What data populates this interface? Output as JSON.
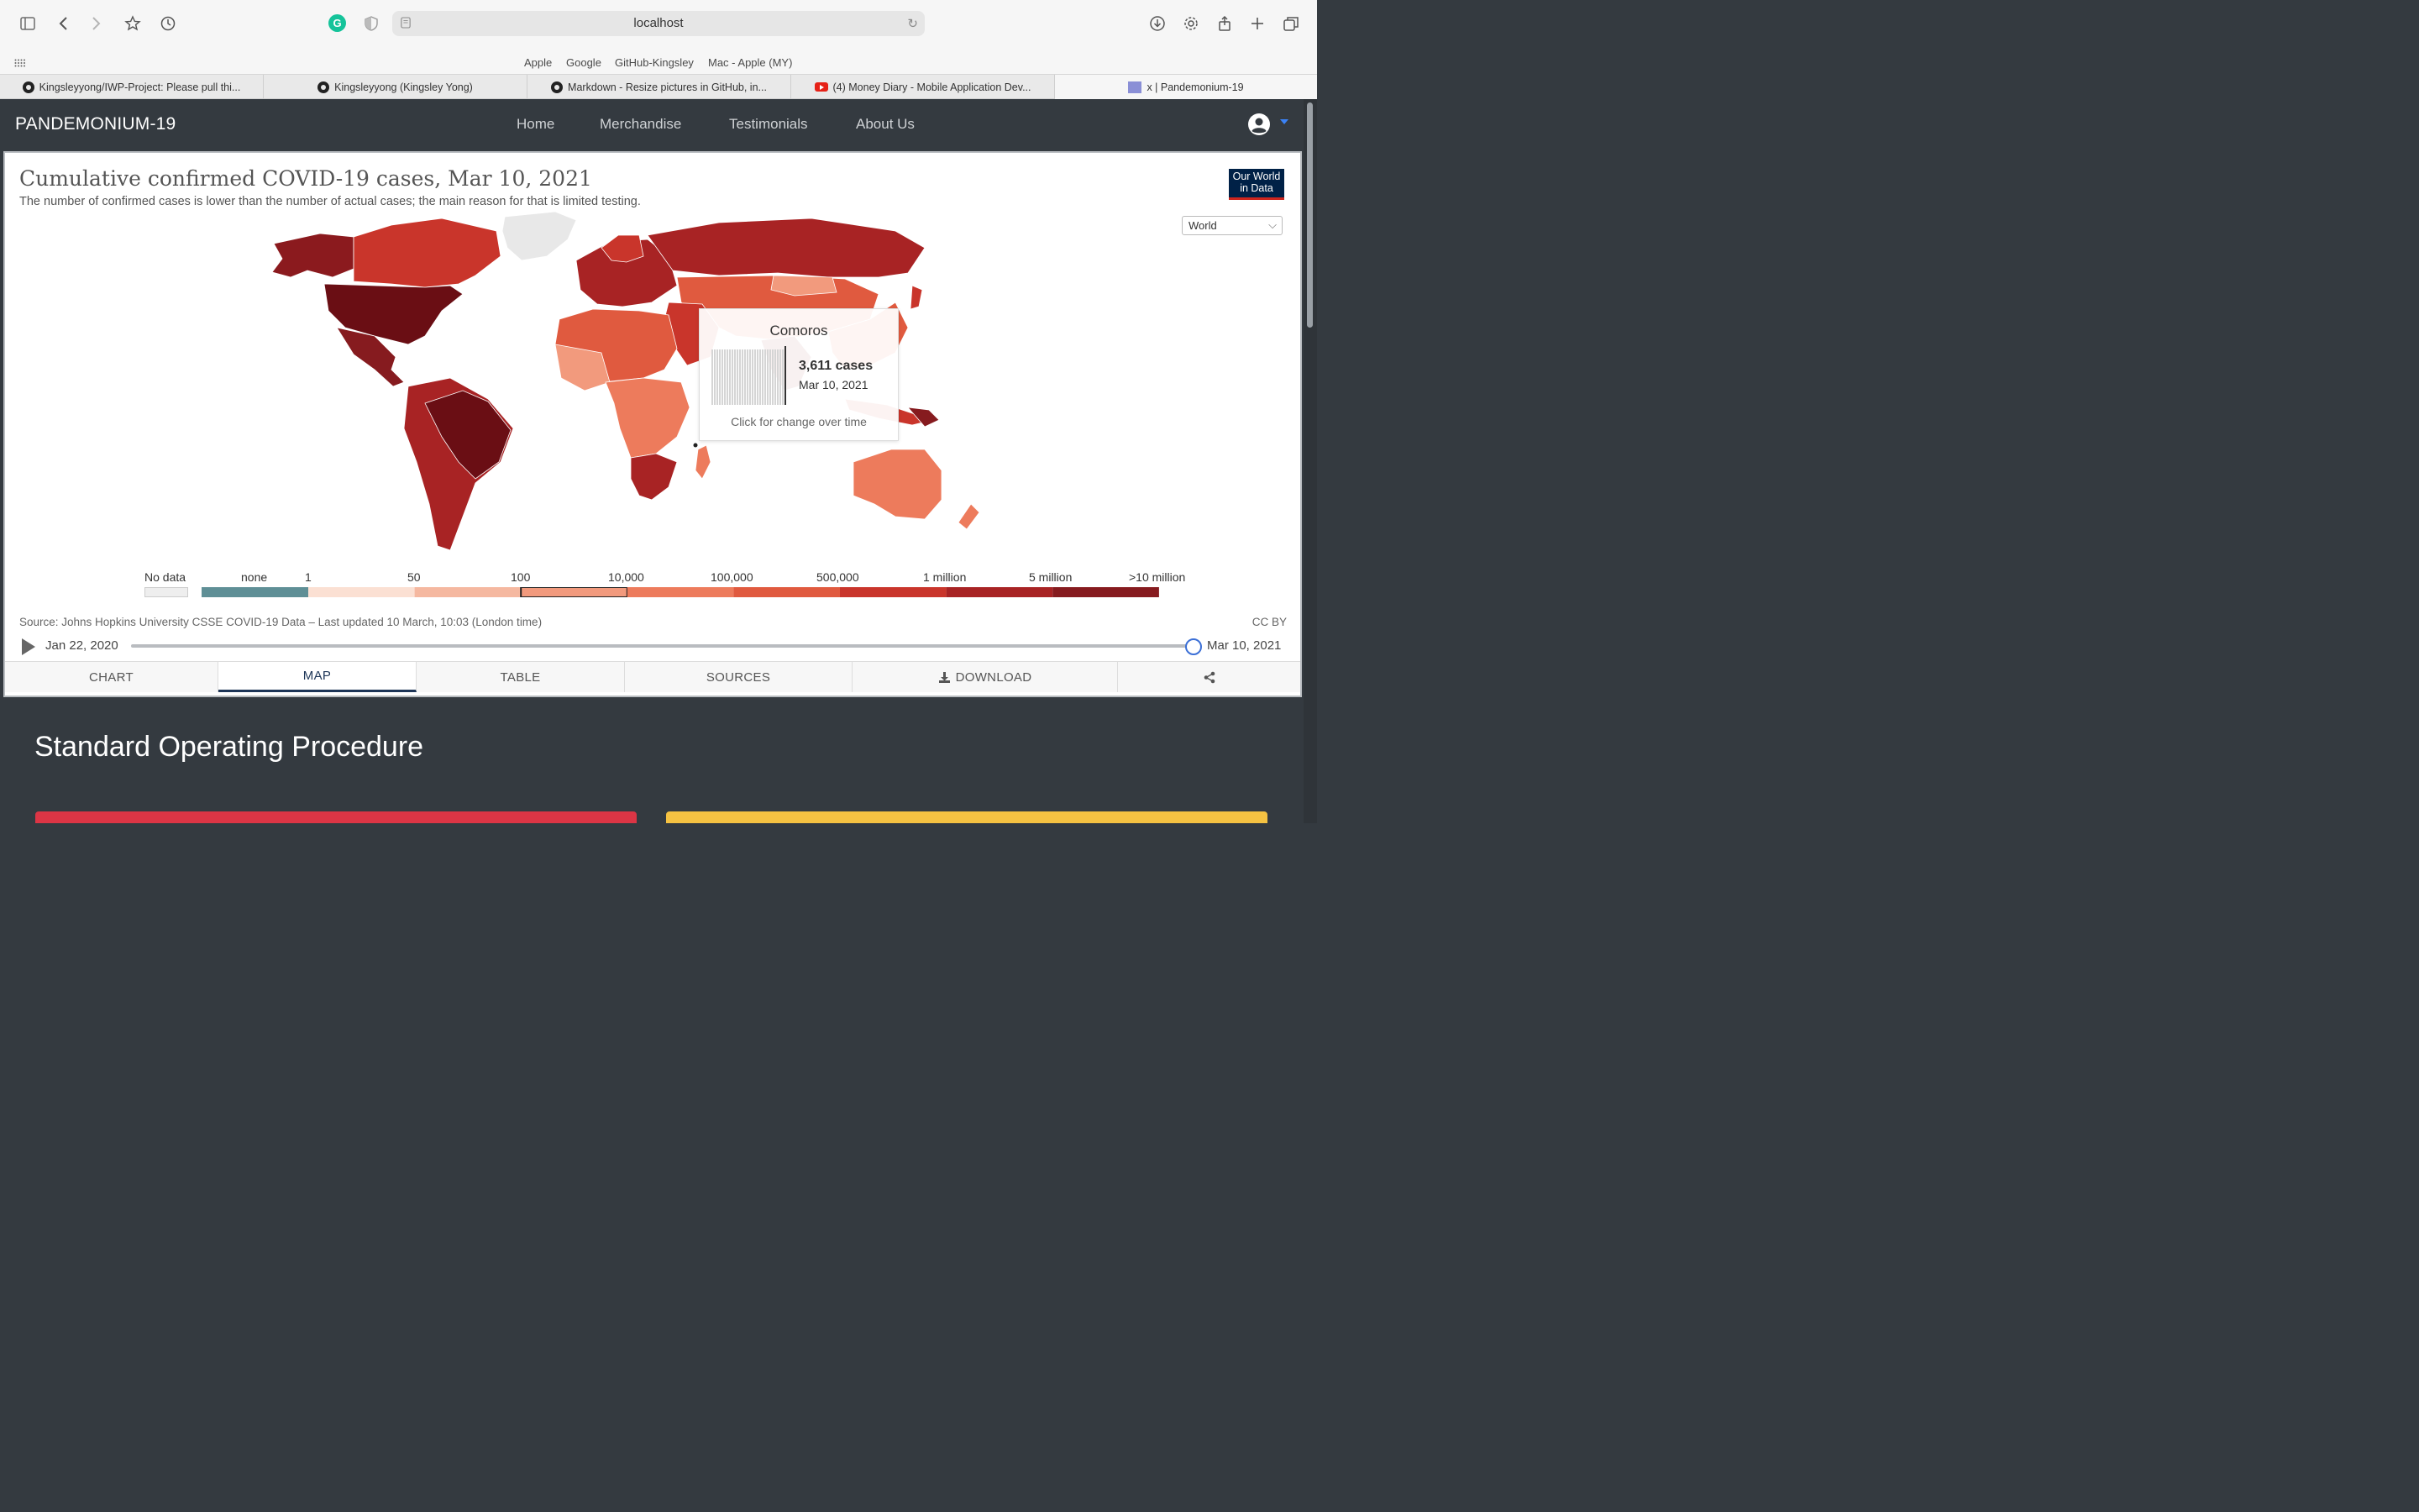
{
  "browser": {
    "url": "localhost",
    "favorites": [
      "Apple",
      "Google",
      "GitHub-Kingsley",
      "Mac - Apple (MY)"
    ],
    "tabs": [
      {
        "label": "Kingsleyyong/IWP-Project: Please pull thi...",
        "icon": "github-icon"
      },
      {
        "label": "Kingsleyyong (Kingsley Yong)",
        "icon": "github-icon"
      },
      {
        "label": "Markdown - Resize pictures in GitHub, in...",
        "icon": "github-icon"
      },
      {
        "label": "(4) Money Diary - Mobile Application Dev...",
        "icon": "youtube-icon"
      },
      {
        "label": "x | Pandemonium-19",
        "icon": "site-icon",
        "active": true
      }
    ]
  },
  "site": {
    "brand": "PANDEMONIUM-19",
    "nav": [
      "Home",
      "Merchandise",
      "Testimonials",
      "About Us"
    ]
  },
  "chart": {
    "title": "Cumulative confirmed COVID-19 cases, Mar 10, 2021",
    "subtitle": "The number of confirmed cases is lower than the number of actual cases; the main reason for that is limited testing.",
    "logo": "Our World in Data",
    "region": "World",
    "legend": {
      "no_data": "No data",
      "labels": [
        "none",
        "1",
        "50",
        "100",
        "10,000",
        "100,000",
        "500,000",
        "1 million",
        "5 million",
        ">10 million"
      ],
      "colors": [
        "#5f8f96",
        "#fbe0d3",
        "#f5b8a0",
        "#f29a7d",
        "#ed7b5c",
        "#e05a3f",
        "#c9352b",
        "#a82324",
        "#861b1f",
        "#6a0e14"
      ],
      "highlighted_bin": "100 – 10,000"
    },
    "tooltip": {
      "country": "Comoros",
      "value": "3,611 cases",
      "date": "Mar 10, 2021",
      "hint": "Click for change over time"
    },
    "source": "Source: Johns Hopkins University CSSE COVID-19 Data – Last updated 10 March, 10:03 (London time)",
    "license": "CC BY",
    "timeline": {
      "start": "Jan 22, 2020",
      "end": "Mar 10, 2021"
    },
    "tabs": [
      "CHART",
      "MAP",
      "TABLE",
      "SOURCES",
      "DOWNLOAD"
    ],
    "active_tab": "MAP"
  },
  "page": {
    "section_title": "Standard Operating Procedure"
  },
  "colors": {
    "navbar": "#343a40",
    "card_red": "#dc3545",
    "card_yellow": "#f5c242"
  }
}
